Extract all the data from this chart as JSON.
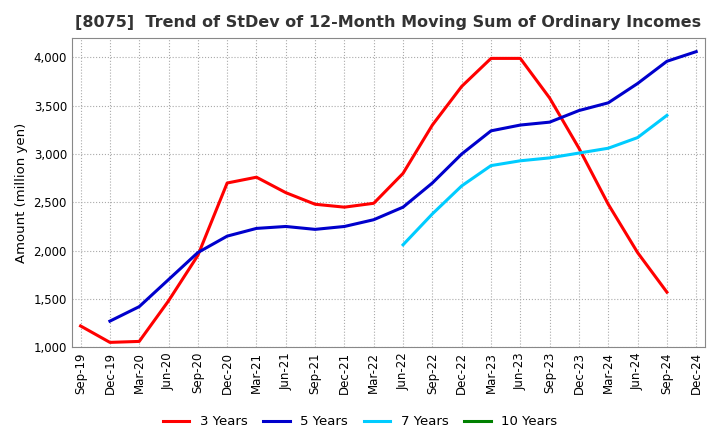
{
  "title": "[8075]  Trend of StDev of 12-Month Moving Sum of Ordinary Incomes",
  "ylabel": "Amount (million yen)",
  "ylim": [
    1000,
    4200
  ],
  "yticks": [
    1000,
    1500,
    2000,
    2500,
    3000,
    3500,
    4000
  ],
  "background_color": "#ffffff",
  "grid_color": "#aaaaaa",
  "x_labels": [
    "Sep-19",
    "Dec-19",
    "Mar-20",
    "Jun-20",
    "Sep-20",
    "Dec-20",
    "Mar-21",
    "Jun-21",
    "Sep-21",
    "Dec-21",
    "Mar-22",
    "Jun-22",
    "Sep-22",
    "Dec-22",
    "Mar-23",
    "Jun-23",
    "Sep-23",
    "Dec-23",
    "Mar-24",
    "Jun-24",
    "Sep-24",
    "Dec-24"
  ],
  "series": {
    "3 Years": {
      "color": "#ff0000",
      "data": [
        1220,
        1050,
        1060,
        1480,
        1950,
        2700,
        2760,
        2600,
        2480,
        2450,
        2490,
        2800,
        3300,
        3700,
        3990,
        3990,
        3580,
        3060,
        2480,
        1980,
        1570,
        null
      ]
    },
    "5 Years": {
      "color": "#0000cc",
      "data": [
        null,
        1270,
        1420,
        1700,
        1980,
        2150,
        2230,
        2250,
        2220,
        2250,
        2320,
        2450,
        2700,
        3000,
        3240,
        3300,
        3330,
        3450,
        3530,
        3730,
        3960,
        4060
      ]
    },
    "7 Years": {
      "color": "#00ccff",
      "data": [
        null,
        null,
        null,
        null,
        null,
        null,
        null,
        null,
        null,
        null,
        null,
        2060,
        2380,
        2670,
        2880,
        2930,
        2960,
        3010,
        3060,
        3170,
        3400,
        null
      ]
    },
    "10 Years": {
      "color": "#008000",
      "data": [
        null,
        null,
        null,
        null,
        null,
        null,
        null,
        null,
        null,
        null,
        null,
        null,
        null,
        null,
        null,
        null,
        null,
        null,
        null,
        null,
        null,
        null
      ]
    }
  },
  "legend": {
    "labels": [
      "3 Years",
      "5 Years",
      "7 Years",
      "10 Years"
    ],
    "colors": [
      "#ff0000",
      "#0000cc",
      "#00ccff",
      "#008000"
    ]
  },
  "title_fontsize": 11.5,
  "ylabel_fontsize": 9.5,
  "tick_fontsize": 8.5,
  "legend_fontsize": 9.5
}
